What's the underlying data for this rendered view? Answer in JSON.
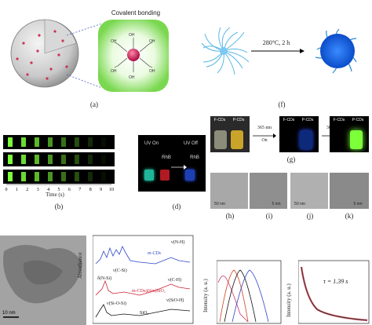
{
  "panel_a": {
    "label": "Covalent bonding",
    "caption": "(a)"
  },
  "panel_f": {
    "label": "280°C, 2 h",
    "caption": "(f)"
  },
  "panel_g": {
    "caption": "(g)",
    "vial_left": "F-CDs",
    "vial_right": "P-CDs",
    "step1_wavelength": "365 nm",
    "step1_state": "On",
    "step2_wavelength": "365 nm",
    "step2_state": "Off"
  },
  "panel_b": {
    "caption": "(b)",
    "x_axis_title": "Time (s)",
    "x_ticks": [
      "0",
      "1",
      "2",
      "3",
      "4",
      "5",
      "6",
      "7",
      "8",
      "9",
      "10"
    ]
  },
  "panel_d": {
    "caption": "(d)",
    "uv_on": "UV On",
    "uv_off": "UV Off",
    "rhb_left": "RhB",
    "rhb_right": "RhB"
  },
  "panel_hk": {
    "captions": [
      "(h)",
      "(i)",
      "(j)",
      "(k)"
    ],
    "scales": [
      "50 nm",
      "5 nm",
      "50 nm",
      "5 nm"
    ]
  },
  "bottom_left": {
    "scale": "10 nm"
  },
  "ftir": {
    "y_title": "Absorbance",
    "series": [
      "m-CDs",
      "m-CDs@(m)SiO₂",
      "SiO₂"
    ],
    "peaks": [
      "ν(N-H)",
      "δ(N-Si)",
      "ν(C-Si)",
      "ν(C-H)",
      "ν(Si-O-Si)",
      "ν(SiO-H)"
    ]
  },
  "pl": {
    "y_title": "Intensity (a. u.)"
  },
  "decay": {
    "y_title": "Intensity (a. u.)",
    "annotation": "τ = 1.39 s"
  },
  "colors": {
    "halo": "#8fe06a",
    "dot": "#cc3355",
    "blue_dot": "#1e6fe0",
    "green_emission": "#7dff3a"
  }
}
